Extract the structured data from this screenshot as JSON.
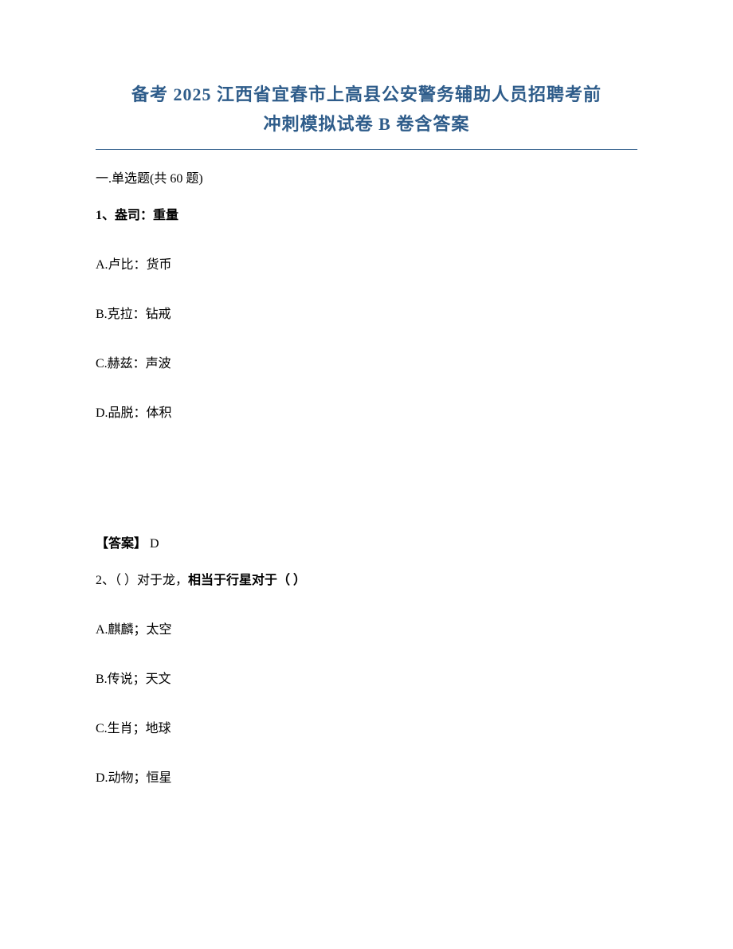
{
  "title": {
    "line1": "备考 2025 江西省宜春市上高县公安警务辅助人员招聘考前",
    "line2": "冲刺模拟试卷 B 卷含答案",
    "color": "#2e5c8a",
    "fontsize": 22
  },
  "section": {
    "label": "一.单选题(共 60 题)"
  },
  "questions": [
    {
      "number": "1、",
      "stem": "盎司：重量",
      "options": [
        "A.卢比：货币",
        "B.克拉：钻戒",
        "C.赫兹：声波",
        "D.品脱：体积"
      ],
      "answer_label": "【答案】",
      "answer_value": " D"
    },
    {
      "number": "2、",
      "stem_part1": "（ ）对于龙，",
      "stem_part2": "相当于行星对于（ ）",
      "options": [
        "A.麒麟；太空",
        "B.传说；天文",
        "C.生肖；地球",
        "D.动物；恒星"
      ]
    }
  ],
  "styles": {
    "body_fontsize": 16,
    "text_color": "#000000",
    "background_color": "#ffffff",
    "option_spacing": 38,
    "answer_top_margin": 140
  }
}
